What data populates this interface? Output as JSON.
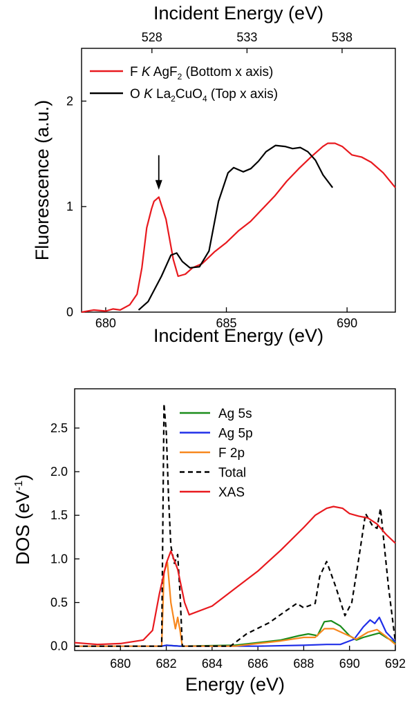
{
  "chart_data": [
    {
      "type": "line",
      "x_label_bottom": "Incident Energy (eV)",
      "x_label_top": "Incident Energy (eV)",
      "y_label": "Fluorescence (a.u.)",
      "xlim_bottom": [
        679,
        692
      ],
      "xlim_top": [
        524.3,
        540.8
      ],
      "ylim": [
        0,
        2.5
      ],
      "x_ticks_bottom": [
        680,
        685,
        690
      ],
      "x_ticks_top": [
        528,
        533,
        538
      ],
      "y_ticks": [
        0,
        1,
        2
      ],
      "grid": false,
      "legend_position": "top-left",
      "legend": [
        {
          "prefix": "F ",
          "italic": "K",
          "text_a": " AgF",
          "sub": "2",
          "text_b": " (Bottom x axis)",
          "color": "#e8191e"
        },
        {
          "prefix": "O ",
          "italic": "K",
          "text_a": " La",
          "sub": "2",
          "text_b": "CuO",
          "sub2": "4",
          "text_c": " (Top x axis)",
          "color": "#000000"
        }
      ],
      "annotation": {
        "type": "arrow",
        "x": 682.2,
        "y": 1.16,
        "direction": "down"
      },
      "series": [
        {
          "color": "#e8191e",
          "axis": "bottom",
          "x": [
            679.0,
            679.5,
            680.0,
            680.3,
            680.6,
            681.0,
            681.3,
            681.5,
            681.7,
            681.9,
            682.0,
            682.2,
            682.5,
            682.8,
            683.0,
            683.3,
            683.6,
            684.0,
            684.5,
            685.0,
            685.5,
            686.0,
            686.5,
            687.0,
            687.5,
            688.0,
            688.5,
            689.0,
            689.2,
            689.5,
            689.8,
            690.2,
            690.6,
            691.0,
            691.5,
            692.0
          ],
          "y": [
            0.0,
            0.02,
            0.01,
            0.03,
            0.02,
            0.07,
            0.17,
            0.42,
            0.8,
            0.98,
            1.05,
            1.09,
            0.88,
            0.5,
            0.34,
            0.36,
            0.42,
            0.46,
            0.57,
            0.66,
            0.77,
            0.86,
            0.98,
            1.1,
            1.24,
            1.36,
            1.47,
            1.57,
            1.6,
            1.6,
            1.57,
            1.49,
            1.47,
            1.42,
            1.32,
            1.18
          ]
        },
        {
          "color": "#000000",
          "axis": "top",
          "x": [
            527.3,
            527.8,
            528.5,
            529.0,
            529.3,
            529.6,
            530.0,
            530.5,
            531.0,
            531.5,
            532.0,
            532.3,
            532.8,
            533.2,
            533.6,
            534.0,
            534.5,
            535.0,
            535.4,
            535.8,
            536.2,
            536.6,
            537.0,
            537.5
          ],
          "y": [
            0.02,
            0.1,
            0.34,
            0.54,
            0.56,
            0.48,
            0.42,
            0.43,
            0.58,
            1.05,
            1.32,
            1.37,
            1.33,
            1.36,
            1.43,
            1.52,
            1.58,
            1.57,
            1.55,
            1.56,
            1.52,
            1.44,
            1.3,
            1.18
          ]
        }
      ]
    },
    {
      "type": "line",
      "x_label": "Energy (eV)",
      "y_label_main": "DOS (eV",
      "y_label_sup": "-1",
      "y_label_close": ")",
      "xlim": [
        678,
        692
      ],
      "ylim": [
        -0.05,
        2.95
      ],
      "x_ticks": [
        680,
        682,
        684,
        686,
        688,
        690,
        692
      ],
      "y_ticks": [
        "0.0",
        "0.5",
        "1.0",
        "1.5",
        "2.0",
        "2.5"
      ],
      "grid": false,
      "legend_position": "top-right",
      "series": [
        {
          "name": "Ag 5s",
          "color": "#1a8c1a",
          "x": [
            678.0,
            681.8,
            682.0,
            682.6,
            685.0,
            686.0,
            687.0,
            687.8,
            688.2,
            688.6,
            688.9,
            689.2,
            689.6,
            690.0,
            690.3,
            690.6,
            691.0,
            691.3,
            691.6,
            692.0
          ],
          "y": [
            0.0,
            0.0,
            0.01,
            0.0,
            0.01,
            0.04,
            0.07,
            0.12,
            0.14,
            0.12,
            0.28,
            0.29,
            0.23,
            0.12,
            0.07,
            0.1,
            0.13,
            0.15,
            0.1,
            0.04
          ]
        },
        {
          "name": "Ag 5p",
          "color": "#1f2ee8",
          "x": [
            678.0,
            681.8,
            682.0,
            682.6,
            686.0,
            688.0,
            689.0,
            689.6,
            690.2,
            690.6,
            690.9,
            691.1,
            691.3,
            691.6,
            692.0
          ],
          "y": [
            0.0,
            0.0,
            0.01,
            0.0,
            0.0,
            0.01,
            0.02,
            0.02,
            0.08,
            0.22,
            0.3,
            0.26,
            0.33,
            0.16,
            0.05
          ]
        },
        {
          "name": "F   2p",
          "color": "#f7871e",
          "x": [
            678.0,
            681.8,
            681.9,
            682.05,
            682.2,
            682.4,
            682.5,
            682.6,
            682.7,
            685.0,
            686.0,
            687.0,
            688.0,
            688.5,
            688.9,
            689.3,
            689.8,
            690.3,
            690.8,
            691.2,
            691.6,
            692.0
          ],
          "y": [
            0.0,
            0.0,
            0.85,
            0.96,
            0.5,
            0.2,
            0.33,
            0.18,
            0.0,
            0.0,
            0.03,
            0.06,
            0.1,
            0.1,
            0.2,
            0.2,
            0.14,
            0.08,
            0.16,
            0.19,
            0.11,
            0.02
          ]
        },
        {
          "name": "Total",
          "color": "#000000",
          "dashed": true,
          "x": [
            678.0,
            681.8,
            681.9,
            682.0,
            682.1,
            682.2,
            682.35,
            682.5,
            682.6,
            682.7,
            684.8,
            685.5,
            686.5,
            687.2,
            687.7,
            688.0,
            688.5,
            688.7,
            689.0,
            689.4,
            689.8,
            690.1,
            690.4,
            690.7,
            691.0,
            691.2,
            691.35,
            691.5,
            691.7,
            692.0
          ],
          "y": [
            0.0,
            0.0,
            2.78,
            2.45,
            1.7,
            1.15,
            0.95,
            1.05,
            0.6,
            0.0,
            0.0,
            0.14,
            0.27,
            0.4,
            0.49,
            0.44,
            0.49,
            0.8,
            0.97,
            0.68,
            0.35,
            0.5,
            1.0,
            1.52,
            1.38,
            1.35,
            1.58,
            1.2,
            0.68,
            0.05
          ]
        },
        {
          "name": "XAS",
          "color": "#e8191e",
          "x": [
            678.0,
            679.0,
            680.0,
            681.0,
            681.4,
            681.7,
            682.0,
            682.2,
            682.5,
            682.8,
            683.0,
            684.0,
            685.0,
            686.0,
            687.0,
            688.0,
            688.5,
            689.0,
            689.3,
            689.7,
            690.0,
            690.4,
            690.8,
            691.2,
            691.6,
            692.0
          ],
          "y": [
            0.04,
            0.02,
            0.03,
            0.07,
            0.18,
            0.6,
            0.95,
            1.09,
            0.88,
            0.5,
            0.36,
            0.46,
            0.66,
            0.86,
            1.1,
            1.36,
            1.5,
            1.58,
            1.6,
            1.58,
            1.52,
            1.49,
            1.47,
            1.4,
            1.28,
            1.18
          ]
        }
      ]
    }
  ]
}
